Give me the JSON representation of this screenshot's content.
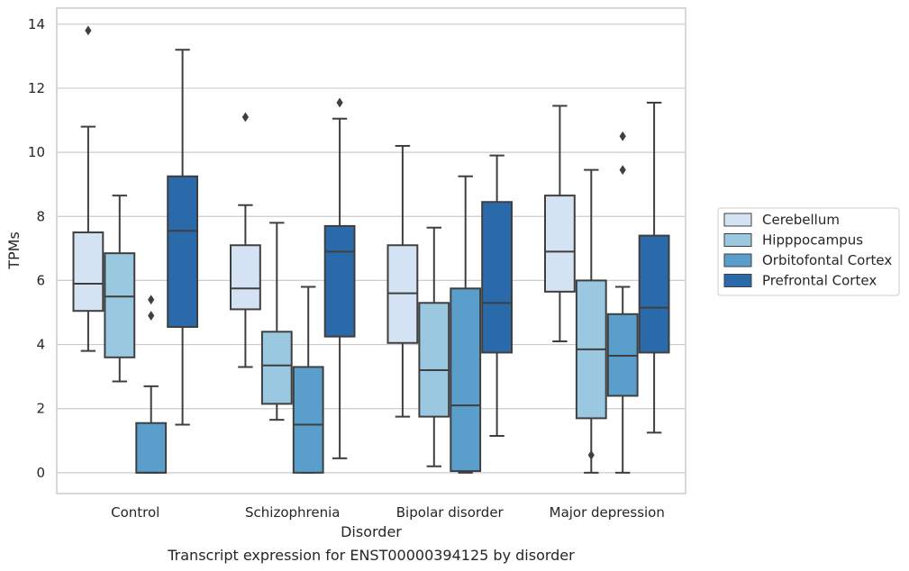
{
  "chart_data": {
    "type": "box",
    "title": "",
    "caption": "Transcript expression for ENST00000394125 by disorder",
    "xlabel": "Disorder",
    "ylabel": "TPMs",
    "ylim": [
      -0.65,
      14.5
    ],
    "yticks": [
      0,
      2,
      4,
      6,
      8,
      10,
      12,
      14
    ],
    "grid": "horizontal",
    "legend_position": "right",
    "categories": [
      "Control",
      "Schizophrenia",
      "Bipolar disorder",
      "Major depression"
    ],
    "series": [
      {
        "name": "Cerebellum",
        "color": "#d3e3f3",
        "boxes": [
          {
            "whislo": 3.8,
            "q1": 5.05,
            "median": 5.9,
            "q3": 7.5,
            "whishi": 10.8,
            "fliers": [
              13.8
            ]
          },
          {
            "whislo": 3.3,
            "q1": 5.1,
            "median": 5.75,
            "q3": 7.1,
            "whishi": 8.35,
            "fliers": [
              11.1
            ]
          },
          {
            "whislo": 1.75,
            "q1": 4.05,
            "median": 5.6,
            "q3": 7.1,
            "whishi": 10.2,
            "fliers": []
          },
          {
            "whislo": 4.1,
            "q1": 5.65,
            "median": 6.9,
            "q3": 8.65,
            "whishi": 11.45,
            "fliers": []
          }
        ]
      },
      {
        "name": "Hipppocampus",
        "color": "#9ac8e0",
        "boxes": [
          {
            "whislo": 2.85,
            "q1": 3.6,
            "median": 5.5,
            "q3": 6.85,
            "whishi": 8.65,
            "fliers": []
          },
          {
            "whislo": 1.65,
            "q1": 2.15,
            "median": 3.35,
            "q3": 4.4,
            "whishi": 7.8,
            "fliers": []
          },
          {
            "whislo": 0.2,
            "q1": 1.75,
            "median": 3.2,
            "q3": 5.3,
            "whishi": 7.65,
            "fliers": []
          },
          {
            "whislo": 0.0,
            "q1": 1.7,
            "median": 3.85,
            "q3": 6.0,
            "whishi": 9.45,
            "fliers": [
              0.55
            ]
          }
        ]
      },
      {
        "name": "Orbitofontal Cortex",
        "color": "#5a9fcc",
        "boxes": [
          {
            "whislo": 0.0,
            "q1": 0.0,
            "median": 0.0,
            "q3": 1.55,
            "whishi": 2.7,
            "fliers": [
              4.9,
              5.4
            ]
          },
          {
            "whislo": 0.0,
            "q1": 0.0,
            "median": 1.5,
            "q3": 3.3,
            "whishi": 5.8,
            "fliers": []
          },
          {
            "whislo": 0.0,
            "q1": 0.05,
            "median": 2.1,
            "q3": 5.75,
            "whishi": 9.25,
            "fliers": []
          },
          {
            "whislo": 0.0,
            "q1": 2.4,
            "median": 3.65,
            "q3": 4.95,
            "whishi": 5.8,
            "fliers": [
              9.45,
              10.5
            ]
          }
        ]
      },
      {
        "name": "Prefrontal Cortex",
        "color": "#2a6aaa",
        "boxes": [
          {
            "whislo": 1.5,
            "q1": 4.55,
            "median": 7.55,
            "q3": 9.25,
            "whishi": 13.2,
            "fliers": []
          },
          {
            "whislo": 0.45,
            "q1": 4.25,
            "median": 6.9,
            "q3": 7.7,
            "whishi": 11.05,
            "fliers": [
              11.55
            ]
          },
          {
            "whislo": 1.15,
            "q1": 3.75,
            "median": 5.3,
            "q3": 8.45,
            "whishi": 9.9,
            "fliers": []
          },
          {
            "whislo": 1.25,
            "q1": 3.75,
            "median": 5.15,
            "q3": 7.4,
            "whishi": 11.55,
            "fliers": []
          }
        ]
      }
    ]
  }
}
